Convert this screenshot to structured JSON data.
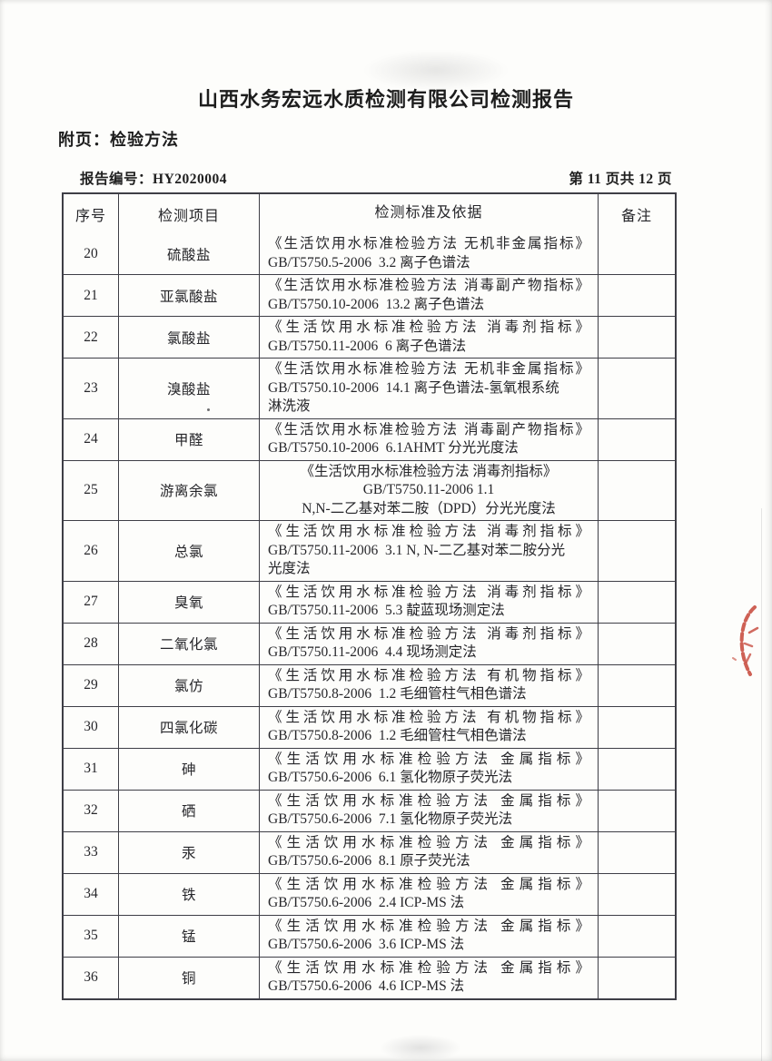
{
  "page": {
    "title": "山西水务宏远水质检测有限公司检测报告",
    "subtitle": "附页：检验方法",
    "report_no_label": "报告编号：",
    "report_no": "HY2020004",
    "page_indicator": "第 11 页共 12 页"
  },
  "table": {
    "headers": [
      "序号",
      "检测项目",
      "检测标准及依据",
      "备注"
    ],
    "rows": [
      {
        "no": "20",
        "item": "硫酸盐",
        "lines": [
          "《生活饮用水标准检验方法 无机非金属指标》",
          "GB/T5750.5-2006  3.2 离子色谱法"
        ],
        "remark": "",
        "align": "left"
      },
      {
        "no": "21",
        "item": "亚氯酸盐",
        "lines": [
          "《生活饮用水标准检验方法 消毒副产物指标》",
          "GB/T5750.10-2006  13.2 离子色谱法"
        ],
        "remark": "",
        "align": "left"
      },
      {
        "no": "22",
        "item": "氯酸盐",
        "lines": [
          "《生活饮用水标准检验方法 消毒剂指标》",
          "GB/T5750.11-2006  6 离子色谱法"
        ],
        "remark": "",
        "align": "left"
      },
      {
        "no": "23",
        "item": "溴酸盐",
        "lines": [
          "《生活饮用水标准检验方法 无机非金属指标》",
          "GB/T5750.10-2006  14.1 离子色谱法-氢氧根系统",
          "淋洗液"
        ],
        "remark": "",
        "align": "left"
      },
      {
        "no": "24",
        "item": "甲醛",
        "lines": [
          "《生活饮用水标准检验方法 消毒副产物指标》",
          "GB/T5750.10-2006  6.1AHMT 分光光度法"
        ],
        "remark": "",
        "align": "left"
      },
      {
        "no": "25",
        "item": "游离余氯",
        "lines": [
          "《生活饮用水标准检验方法 消毒剂指标》",
          "GB/T5750.11-2006 1.1",
          "N,N-二乙基对苯二胺（DPD）分光光度法"
        ],
        "remark": "",
        "align": "center"
      },
      {
        "no": "26",
        "item": "总氯",
        "lines": [
          "《生活饮用水标准检验方法 消毒剂指标》",
          "GB/T5750.11-2006  3.1 N, N-二乙基对苯二胺分光",
          "光度法"
        ],
        "remark": "",
        "align": "left"
      },
      {
        "no": "27",
        "item": "臭氧",
        "lines": [
          "《生活饮用水标准检验方法 消毒剂指标》",
          "GB/T5750.11-2006  5.3 靛蓝现场测定法"
        ],
        "remark": "",
        "align": "left"
      },
      {
        "no": "28",
        "item": "二氧化氯",
        "lines": [
          "《生活饮用水标准检验方法 消毒剂指标》",
          "GB/T5750.11-2006  4.4 现场测定法"
        ],
        "remark": "",
        "align": "left"
      },
      {
        "no": "29",
        "item": "氯仿",
        "lines": [
          "《生活饮用水标准检验方法 有机物指标》",
          "GB/T5750.8-2006  1.2 毛细管柱气相色谱法"
        ],
        "remark": "",
        "align": "left"
      },
      {
        "no": "30",
        "item": "四氯化碳",
        "lines": [
          "《生活饮用水标准检验方法 有机物指标》",
          "GB/T5750.8-2006  1.2 毛细管柱气相色谱法"
        ],
        "remark": "",
        "align": "left"
      },
      {
        "no": "31",
        "item": "砷",
        "lines": [
          "《生活饮用水标准检验方法 金属指标》",
          "GB/T5750.6-2006  6.1 氢化物原子荧光法"
        ],
        "remark": "",
        "align": "left"
      },
      {
        "no": "32",
        "item": "硒",
        "lines": [
          "《生活饮用水标准检验方法 金属指标》",
          "GB/T5750.6-2006  7.1 氢化物原子荧光法"
        ],
        "remark": "",
        "align": "left"
      },
      {
        "no": "33",
        "item": "汞",
        "lines": [
          "《生活饮用水标准检验方法 金属指标》",
          "GB/T5750.6-2006  8.1 原子荧光法"
        ],
        "remark": "",
        "align": "left"
      },
      {
        "no": "34",
        "item": "铁",
        "lines": [
          "《生活饮用水标准检验方法 金属指标》",
          "GB/T5750.6-2006  2.4 ICP-MS 法"
        ],
        "remark": "",
        "align": "left"
      },
      {
        "no": "35",
        "item": "锰",
        "lines": [
          "《生活饮用水标准检验方法 金属指标》",
          "GB/T5750.6-2006  3.6 ICP-MS 法"
        ],
        "remark": "",
        "align": "left"
      },
      {
        "no": "36",
        "item": "铜",
        "lines": [
          "《生活饮用水标准检验方法 金属指标》",
          "GB/T5750.6-2006  4.6 ICP-MS 法"
        ],
        "remark": "",
        "align": "left"
      }
    ]
  },
  "seal": {
    "icon": "red-seal-stamp",
    "color": "#c23a2c"
  },
  "colors": {
    "border": "#3e3e46",
    "text": "#26262a",
    "paper": "#fdfdfb"
  }
}
